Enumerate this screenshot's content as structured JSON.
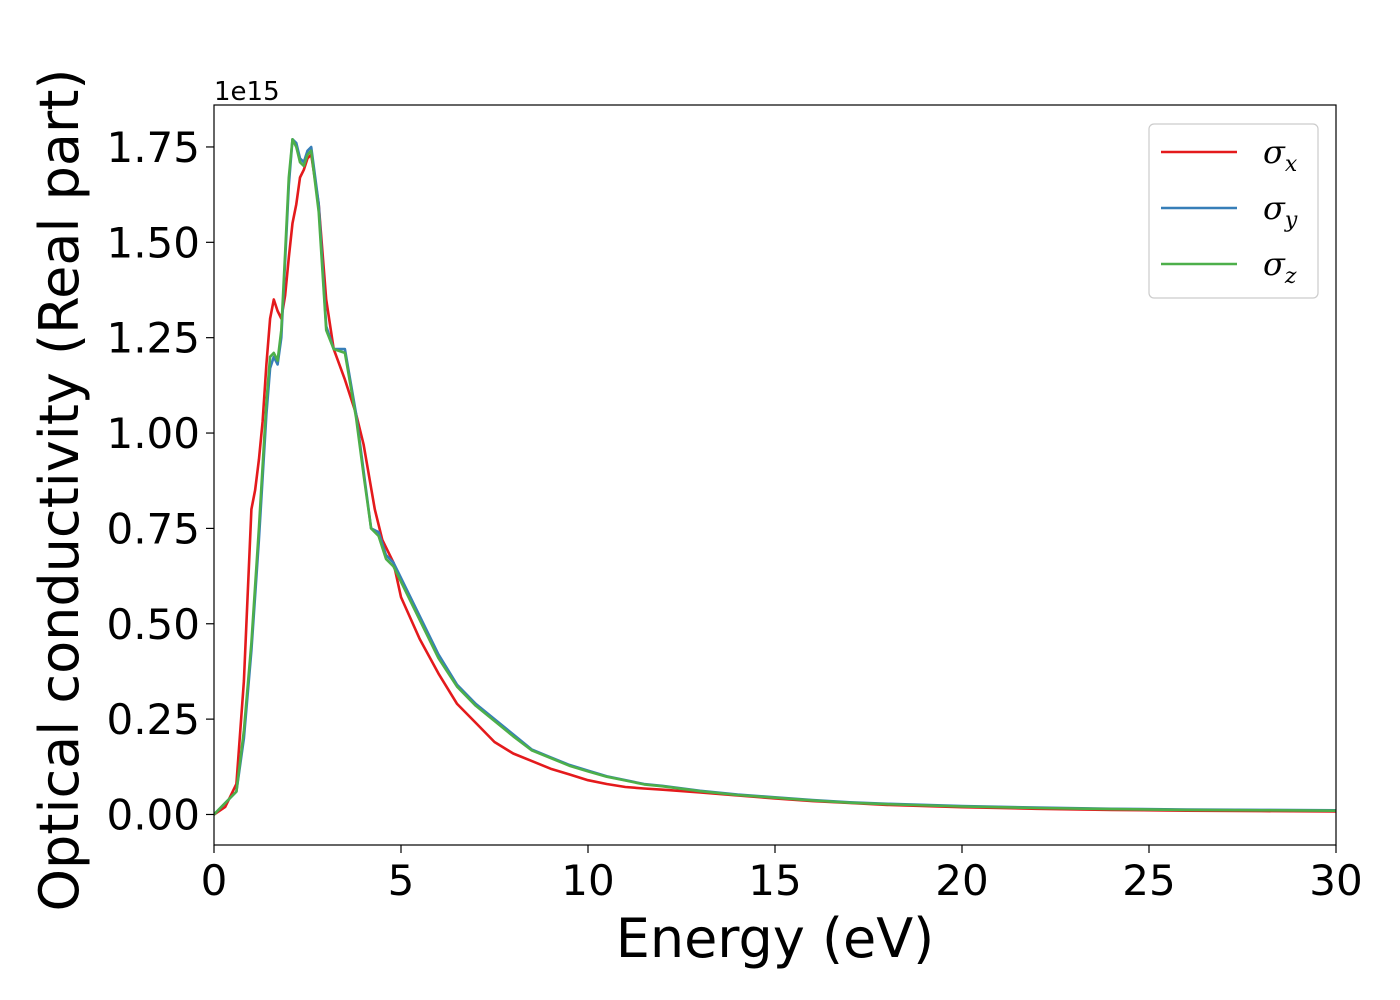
{
  "chart_data": {
    "type": "line",
    "xlabel": "Energy (eV)",
    "ylabel": "Optical conductivity (Real part)",
    "y_offset_label": "1e15",
    "y_scale": 1000000000000000.0,
    "xlim": [
      0,
      30
    ],
    "ylim": [
      -0.08,
      1.86
    ],
    "x_ticks": [
      0,
      5,
      10,
      15,
      20,
      25,
      30
    ],
    "x_tick_labels": [
      "0",
      "5",
      "10",
      "15",
      "20",
      "25",
      "30"
    ],
    "y_ticks": [
      0.0,
      0.25,
      0.5,
      0.75,
      1.0,
      1.25,
      1.5,
      1.75
    ],
    "y_tick_labels": [
      "0.00",
      "0.25",
      "0.50",
      "0.75",
      "1.00",
      "1.25",
      "1.50",
      "1.75"
    ],
    "grid": false,
    "legend_position": "top-right",
    "series": [
      {
        "name": "σx",
        "legend_symbol": "σ",
        "legend_subscript": "x",
        "color": "#e41a1c",
        "x": [
          0,
          0.3,
          0.6,
          0.8,
          1.0,
          1.1,
          1.2,
          1.3,
          1.4,
          1.5,
          1.6,
          1.7,
          1.8,
          1.9,
          2.0,
          2.1,
          2.2,
          2.3,
          2.4,
          2.5,
          2.6,
          2.8,
          3.0,
          3.2,
          3.5,
          3.8,
          4.0,
          4.3,
          4.5,
          4.8,
          5.0,
          5.5,
          6.0,
          6.5,
          7.0,
          7.5,
          8.0,
          8.5,
          9.0,
          9.5,
          10.0,
          10.5,
          11.0,
          11.5,
          12.0,
          13.0,
          14.0,
          15.0,
          16.0,
          17.0,
          18.0,
          20.0,
          22.0,
          24.0,
          26.0,
          28.0,
          30.0
        ],
        "y": [
          0.0,
          0.02,
          0.08,
          0.35,
          0.8,
          0.85,
          0.93,
          1.03,
          1.18,
          1.3,
          1.35,
          1.32,
          1.3,
          1.36,
          1.46,
          1.55,
          1.6,
          1.67,
          1.69,
          1.72,
          1.73,
          1.6,
          1.35,
          1.22,
          1.14,
          1.05,
          0.97,
          0.8,
          0.72,
          0.66,
          0.57,
          0.46,
          0.37,
          0.29,
          0.24,
          0.19,
          0.16,
          0.14,
          0.12,
          0.105,
          0.09,
          0.08,
          0.072,
          0.068,
          0.065,
          0.058,
          0.05,
          0.042,
          0.035,
          0.03,
          0.025,
          0.019,
          0.015,
          0.012,
          0.01,
          0.009,
          0.008
        ]
      },
      {
        "name": "σy",
        "legend_symbol": "σ",
        "legend_subscript": "y",
        "color": "#377eb8",
        "x": [
          0,
          0.3,
          0.6,
          0.8,
          1.0,
          1.2,
          1.4,
          1.5,
          1.6,
          1.7,
          1.8,
          1.9,
          2.0,
          2.1,
          2.2,
          2.3,
          2.4,
          2.5,
          2.6,
          2.8,
          3.0,
          3.2,
          3.5,
          3.8,
          4.0,
          4.2,
          4.4,
          4.6,
          4.8,
          5.0,
          5.5,
          6.0,
          6.5,
          7.0,
          7.5,
          8.0,
          8.5,
          9.0,
          9.5,
          10.0,
          10.5,
          11.0,
          11.5,
          12.0,
          13.0,
          14.0,
          15.0,
          16.0,
          17.0,
          18.0,
          20.0,
          22.0,
          24.0,
          26.0,
          28.0,
          30.0
        ],
        "y": [
          0.0,
          0.03,
          0.06,
          0.2,
          0.43,
          0.72,
          1.05,
          1.17,
          1.2,
          1.18,
          1.25,
          1.45,
          1.65,
          1.77,
          1.76,
          1.72,
          1.71,
          1.74,
          1.75,
          1.6,
          1.28,
          1.22,
          1.22,
          1.05,
          0.9,
          0.75,
          0.74,
          0.68,
          0.66,
          0.62,
          0.52,
          0.42,
          0.34,
          0.29,
          0.25,
          0.21,
          0.17,
          0.15,
          0.13,
          0.115,
          0.1,
          0.09,
          0.08,
          0.075,
          0.062,
          0.052,
          0.045,
          0.038,
          0.032,
          0.028,
          0.022,
          0.018,
          0.015,
          0.013,
          0.012,
          0.011
        ]
      },
      {
        "name": "σz",
        "legend_symbol": "σ",
        "legend_subscript": "z",
        "color": "#4daf4a",
        "x": [
          0,
          0.3,
          0.6,
          0.8,
          1.0,
          1.2,
          1.4,
          1.5,
          1.6,
          1.7,
          1.8,
          1.9,
          2.0,
          2.1,
          2.2,
          2.3,
          2.4,
          2.5,
          2.6,
          2.8,
          3.0,
          3.2,
          3.5,
          3.8,
          4.0,
          4.2,
          4.4,
          4.6,
          4.8,
          5.0,
          5.5,
          6.0,
          6.5,
          7.0,
          7.5,
          8.0,
          8.5,
          9.0,
          9.5,
          10.0,
          10.5,
          11.0,
          11.5,
          12.0,
          13.0,
          14.0,
          15.0,
          16.0,
          17.0,
          18.0,
          20.0,
          22.0,
          24.0,
          26.0,
          28.0,
          30.0
        ],
        "y": [
          0.0,
          0.03,
          0.06,
          0.22,
          0.45,
          0.75,
          1.08,
          1.2,
          1.21,
          1.19,
          1.27,
          1.47,
          1.67,
          1.77,
          1.75,
          1.71,
          1.7,
          1.73,
          1.74,
          1.58,
          1.27,
          1.22,
          1.21,
          1.04,
          0.89,
          0.75,
          0.73,
          0.67,
          0.65,
          0.61,
          0.51,
          0.41,
          0.335,
          0.285,
          0.245,
          0.205,
          0.168,
          0.148,
          0.128,
          0.113,
          0.099,
          0.089,
          0.079,
          0.074,
          0.061,
          0.051,
          0.044,
          0.037,
          0.031,
          0.027,
          0.021,
          0.017,
          0.014,
          0.012,
          0.011,
          0.01
        ]
      }
    ]
  }
}
